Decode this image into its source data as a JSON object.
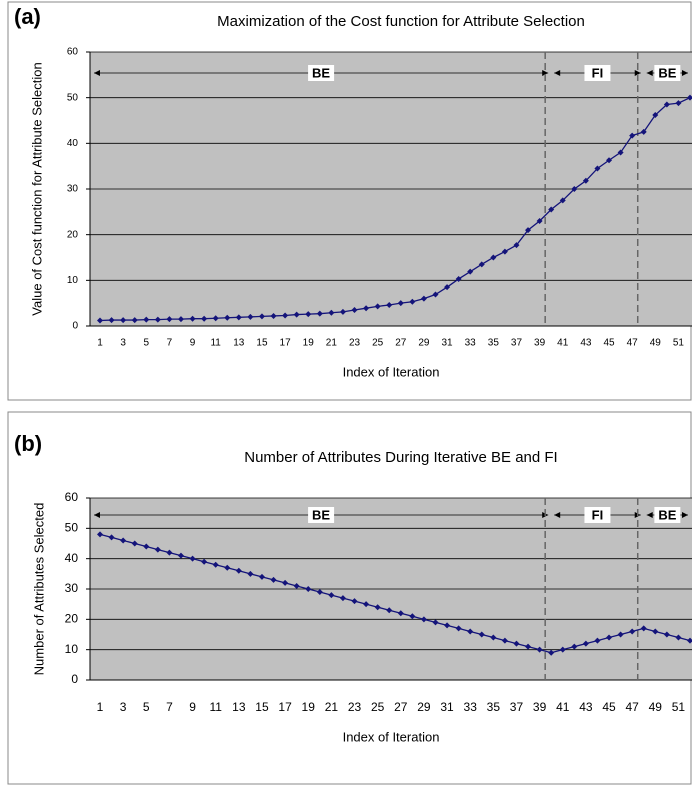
{
  "chart_data": [
    {
      "type": "line",
      "label": "(a)",
      "title": "Maximization of the Cost function for Attribute Selection",
      "y_label": "Value of Cost function for Attribute Selection",
      "x_label": "Index of Iteration",
      "categories": [
        "1",
        null,
        "3",
        null,
        "5",
        null,
        "7",
        null,
        "9",
        null,
        "11",
        null,
        "13",
        null,
        "15",
        null,
        "17",
        null,
        "19",
        null,
        "21",
        null,
        "23",
        null,
        "25",
        null,
        "27",
        null,
        "29",
        null,
        "31",
        null,
        "33",
        null,
        "35",
        null,
        "37",
        null,
        "39",
        null,
        "41",
        null,
        "43",
        null,
        "45",
        null,
        "47",
        null,
        "49",
        null,
        "51",
        null
      ],
      "values": [
        1.2,
        1.3,
        1.3,
        1.3,
        1.4,
        1.4,
        1.5,
        1.5,
        1.6,
        1.6,
        1.7,
        1.8,
        1.9,
        2.0,
        2.1,
        2.2,
        2.3,
        2.5,
        2.6,
        2.7,
        2.9,
        3.1,
        3.5,
        3.9,
        4.3,
        4.6,
        5.0,
        5.3,
        6.0,
        6.9,
        8.5,
        10.3,
        11.9,
        13.5,
        15.0,
        16.3,
        17.7,
        21.0,
        23.0,
        25.5,
        27.5,
        30.0,
        31.8,
        34.5,
        36.3,
        38.0,
        41.7,
        42.5,
        46.2,
        48.5,
        48.8,
        50.0
      ],
      "color": "#14147a",
      "ylim": [
        0,
        60
      ],
      "yticks": [
        0,
        10,
        20,
        30,
        40,
        50,
        60
      ],
      "grid": true,
      "regions": [
        {
          "label": "BE",
          "start": 1,
          "end": 40
        },
        {
          "label": "FI",
          "start": 40,
          "end": 48
        },
        {
          "label": "BE",
          "start": 48,
          "end": 52
        }
      ]
    },
    {
      "type": "line",
      "label": "(b)",
      "title": "Number of Attributes During Iterative BE and FI",
      "y_label": "Number of Attributes Selected",
      "x_label": "Index of Iteration",
      "categories": [
        "1",
        null,
        "3",
        null,
        "5",
        null,
        "7",
        null,
        "9",
        null,
        "11",
        null,
        "13",
        null,
        "15",
        null,
        "17",
        null,
        "19",
        null,
        "21",
        null,
        "23",
        null,
        "25",
        null,
        "27",
        null,
        "29",
        null,
        "31",
        null,
        "33",
        null,
        "35",
        null,
        "37",
        null,
        "39",
        null,
        "41",
        null,
        "43",
        null,
        "45",
        null,
        "47",
        null,
        "49",
        null,
        "51",
        null
      ],
      "values": [
        48,
        47,
        46,
        45,
        44,
        43,
        42,
        41,
        40,
        39,
        38,
        37,
        36,
        35,
        34,
        33,
        32,
        31,
        30,
        29,
        28,
        27,
        26,
        25,
        24,
        23,
        22,
        21,
        20,
        19,
        18,
        17,
        16,
        15,
        14,
        13,
        12,
        11,
        10,
        9,
        10,
        11,
        12,
        13,
        14,
        15,
        16,
        17,
        16,
        15,
        14,
        13
      ],
      "color": "#14147a",
      "ylim": [
        0,
        60
      ],
      "yticks": [
        0,
        10,
        20,
        30,
        40,
        50,
        60
      ],
      "grid": true,
      "regions": [
        {
          "label": "BE",
          "start": 1,
          "end": 40
        },
        {
          "label": "FI",
          "start": 40,
          "end": 48
        },
        {
          "label": "BE",
          "start": 48,
          "end": 52
        }
      ]
    }
  ]
}
